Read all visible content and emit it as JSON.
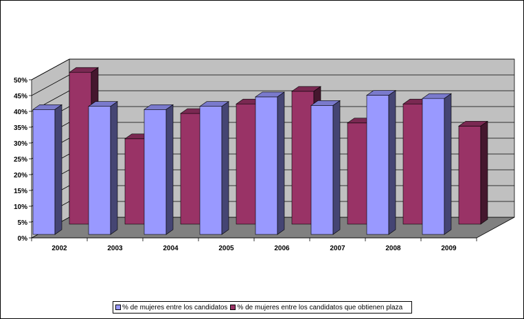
{
  "chart_data": {
    "type": "bar",
    "categories": [
      "2002",
      "2003",
      "2004",
      "2005",
      "2006",
      "2007",
      "2008",
      "2009"
    ],
    "series": [
      {
        "name": "% de mujeres entre los candidatos",
        "values": [
          39.5,
          40.5,
          39.5,
          40.5,
          43.5,
          40.8,
          44,
          43
        ],
        "color": "#9999ff"
      },
      {
        "name": "% de mujeres entre los candidatos que obtienen plaza",
        "values": [
          48,
          27,
          35,
          38,
          42,
          32,
          38,
          31
        ],
        "color": "#993366"
      }
    ],
    "y_ticks": [
      "0%",
      "5%",
      "10%",
      "15%",
      "20%",
      "25%",
      "30%",
      "35%",
      "40%",
      "45%",
      "50%"
    ],
    "ylim": [
      0,
      50
    ],
    "grid": true,
    "style": "3d-clustered-column",
    "legend_position": "bottom"
  }
}
